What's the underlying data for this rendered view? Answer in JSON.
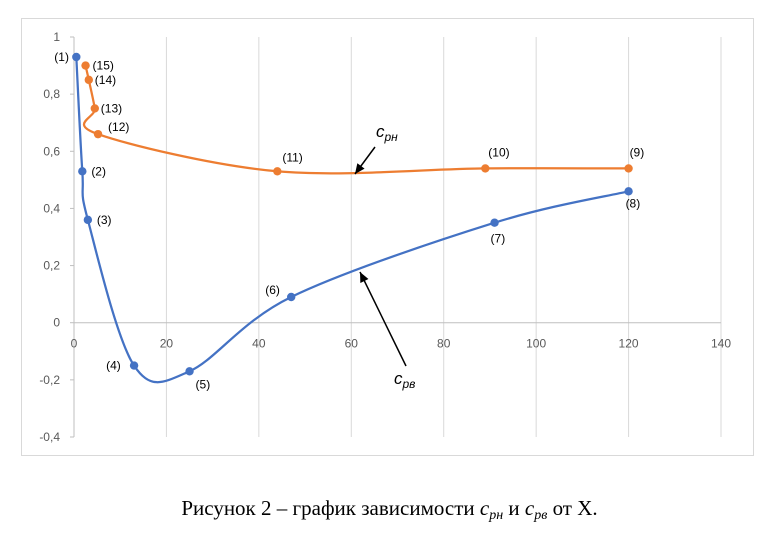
{
  "chart_data": {
    "type": "line",
    "title": "",
    "xlabel": "",
    "ylabel": "",
    "xlim": [
      0,
      140
    ],
    "ylim": [
      -0.4,
      1
    ],
    "x_ticks": [
      0,
      20,
      40,
      60,
      80,
      100,
      120,
      140
    ],
    "y_ticks": [
      -0.4,
      -0.2,
      0,
      0.2,
      0.4,
      0.6,
      0.8,
      1
    ],
    "x_tick_labels": [
      "0",
      "20",
      "40",
      "60",
      "80",
      "100",
      "120",
      "140"
    ],
    "y_tick_labels": [
      "-0,4",
      "-0,2",
      "0",
      "0,2",
      "0,4",
      "0,6",
      "0,8",
      "1"
    ],
    "grid": "vertical",
    "colors": {
      "series_blue": "#4472c4",
      "series_orange": "#ed7d31",
      "grid": "#d9d9d9",
      "axis": "#bfbfbf"
    },
    "series": [
      {
        "color": "#4472c4",
        "label_base": "c",
        "label_sub": "рв",
        "points": [
          {
            "label": "(1)",
            "x": 0.5,
            "y": 0.93
          },
          {
            "label": "(2)",
            "x": 1.8,
            "y": 0.53
          },
          {
            "label": "(3)",
            "x": 3,
            "y": 0.36
          },
          {
            "label": "(4)",
            "x": 13,
            "y": -0.15
          },
          {
            "label": "(5)",
            "x": 25,
            "y": -0.17
          },
          {
            "label": "(6)",
            "x": 47,
            "y": 0.09
          },
          {
            "label": "(7)",
            "x": 91,
            "y": 0.35
          },
          {
            "label": "(8)",
            "x": 120,
            "y": 0.46
          }
        ]
      },
      {
        "color": "#ed7d31",
        "label_base": "c",
        "label_sub": "рн",
        "points": [
          {
            "label": "(15)",
            "x": 2.5,
            "y": 0.9
          },
          {
            "label": "(14)",
            "x": 3.2,
            "y": 0.85
          },
          {
            "label": "(13)",
            "x": 4.5,
            "y": 0.75
          },
          {
            "label": "(12)",
            "x": 5.2,
            "y": 0.66
          },
          {
            "label": "(11)",
            "x": 44,
            "y": 0.53
          },
          {
            "label": "(10)",
            "x": 89,
            "y": 0.54
          },
          {
            "label": "(9)",
            "x": 120,
            "y": 0.54
          }
        ]
      }
    ]
  },
  "caption": {
    "prefix": "Рисунок 2 – график зависимости ",
    "var1_base": "c",
    "var1_sub": "рн",
    "middle": " и ",
    "var2_base": "c",
    "var2_sub": "рв",
    "suffix": " от X."
  }
}
